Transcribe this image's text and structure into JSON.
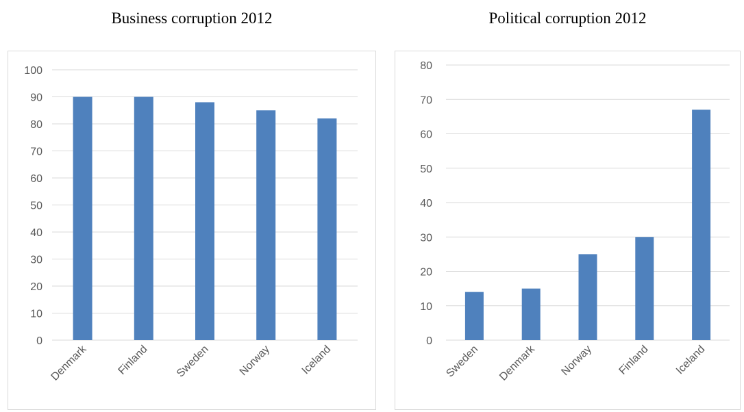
{
  "colors": {
    "bar": "#4f81bd",
    "gridline": "#d9d9d9",
    "tick_text": "#595959",
    "frame": "#d9d9d9",
    "title_text": "#000000"
  },
  "chart_data": [
    {
      "type": "bar",
      "title": "Business corruption 2012",
      "categories": [
        "Denmark",
        "Finland",
        "Sweden",
        "Norway",
        "Iceland"
      ],
      "values": [
        90,
        90,
        88,
        85,
        82
      ],
      "ylim": [
        0,
        100
      ],
      "yticks": [
        0,
        10,
        20,
        30,
        40,
        50,
        60,
        70,
        80,
        90,
        100
      ],
      "xlabel": "",
      "ylabel": "",
      "grid": true,
      "legend": "none"
    },
    {
      "type": "bar",
      "title": "Political corruption 2012",
      "categories": [
        "Sweden",
        "Denmark",
        "Norway",
        "Finland",
        "Iceland"
      ],
      "values": [
        14,
        15,
        25,
        30,
        67
      ],
      "ylim": [
        0,
        80
      ],
      "yticks": [
        0,
        10,
        20,
        30,
        40,
        50,
        60,
        70,
        80
      ],
      "xlabel": "",
      "ylabel": "",
      "grid": true,
      "legend": "none"
    }
  ]
}
